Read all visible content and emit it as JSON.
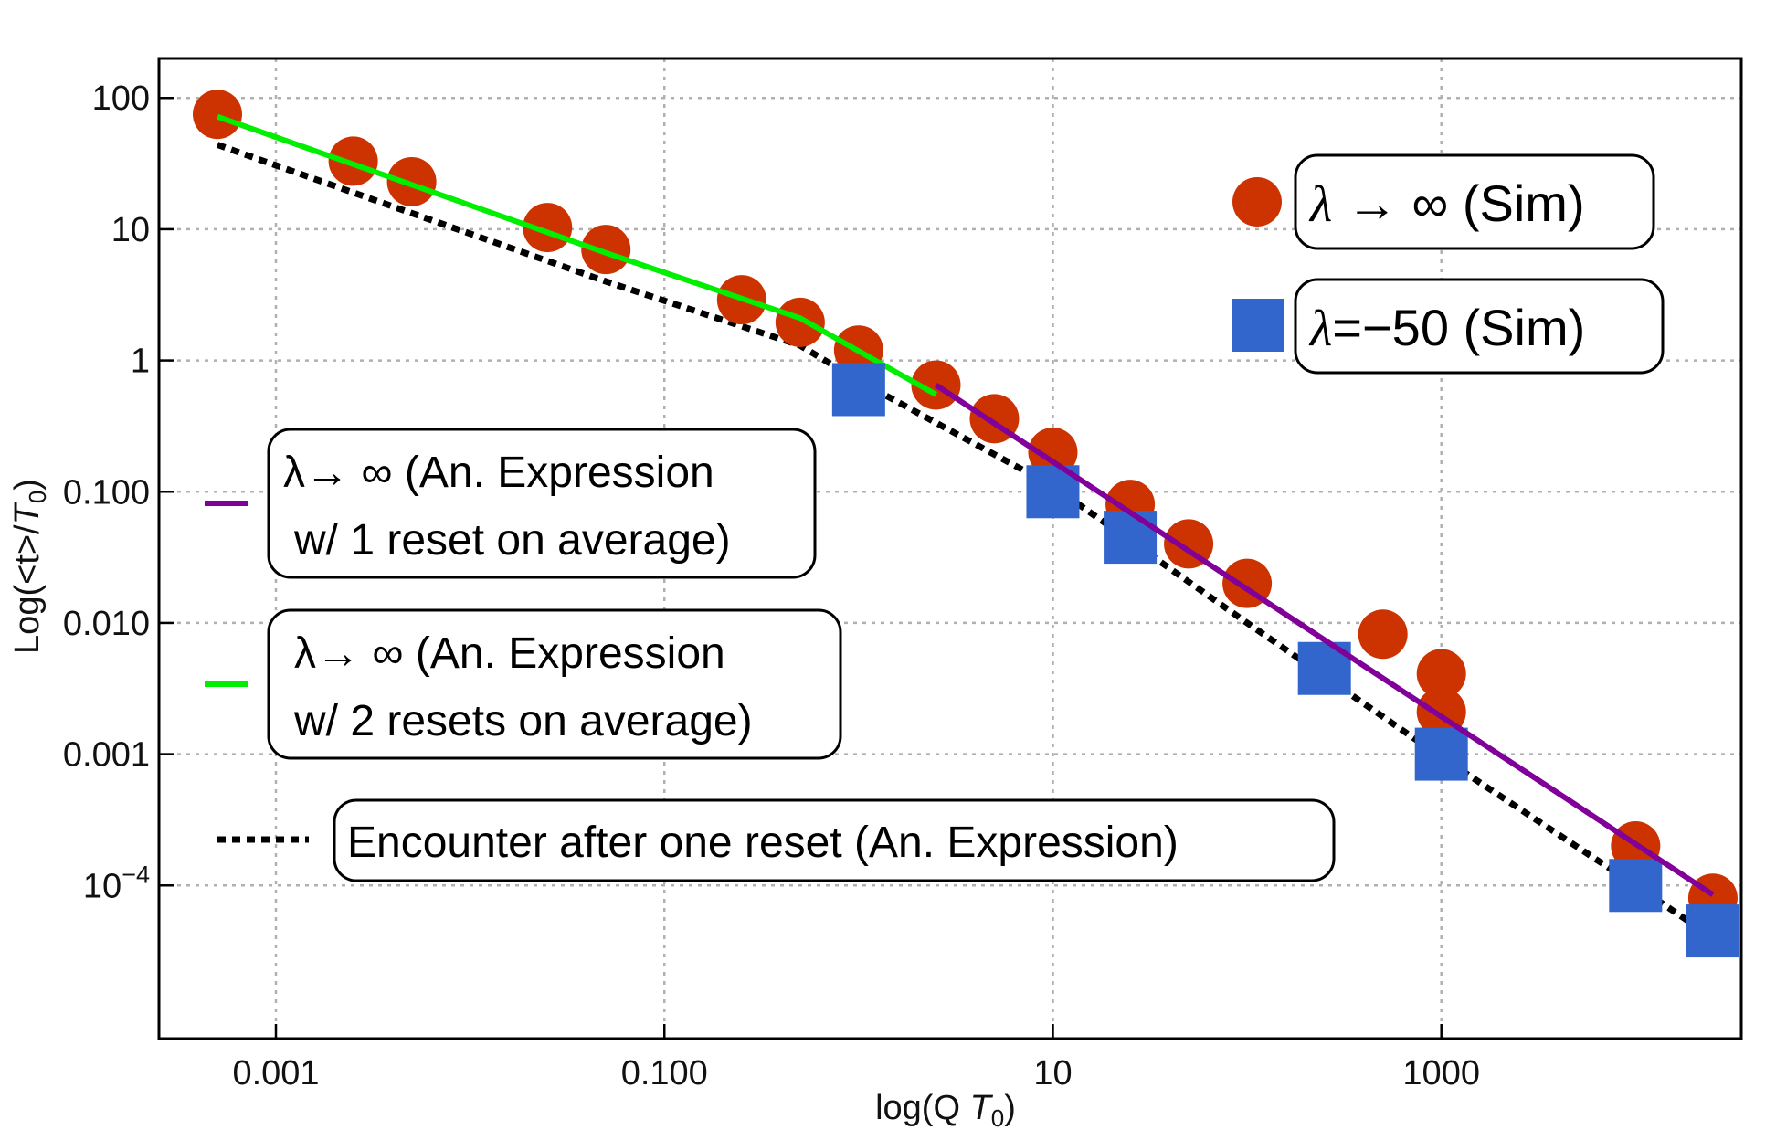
{
  "chart_data": {
    "type": "scatter",
    "xlabel": "log(Q T0)",
    "xlabel_main": "log(Q ",
    "xlabel_var": "T",
    "xlabel_sub": "0",
    "xlabel_close": ")",
    "ylabel": "Log(<t>/T0)",
    "ylabel_main": "Log(<t>/",
    "ylabel_var": "T",
    "ylabel_sub": "0",
    "ylabel_close": ")",
    "xscale": "log",
    "yscale": "log",
    "xlim": [
      0.00025,
      35000
    ],
    "ylim": [
      6.8e-06,
      200
    ],
    "grid": true,
    "x_ticks": [
      {
        "value": 0.001,
        "label": "0.001"
      },
      {
        "value": 0.1,
        "label": "0.100"
      },
      {
        "value": 10,
        "label": "10"
      },
      {
        "value": 1000,
        "label": "1000"
      }
    ],
    "y_ticks": [
      {
        "value": 100,
        "label": "100"
      },
      {
        "value": 10,
        "label": "10"
      },
      {
        "value": 1,
        "label": "1"
      },
      {
        "value": 0.1,
        "label": "0.100"
      },
      {
        "value": 0.01,
        "label": "0.010"
      },
      {
        "value": 0.001,
        "label": "0.001"
      },
      {
        "value": 0.0001,
        "label": "10",
        "sup": "−4"
      }
    ],
    "series": [
      {
        "name": "λ → ∞ (Sim)",
        "kind": "points",
        "marker": "circle",
        "color": "#cc3300",
        "points": [
          [
            0.0005,
            75
          ],
          [
            0.0025,
            33
          ],
          [
            0.005,
            23
          ],
          [
            0.025,
            10.3
          ],
          [
            0.05,
            7
          ],
          [
            0.25,
            2.9
          ],
          [
            0.5,
            1.95
          ],
          [
            1,
            1.2
          ],
          [
            2.5,
            0.65
          ],
          [
            5,
            0.36
          ],
          [
            10,
            0.2
          ],
          [
            25,
            0.08
          ],
          [
            50,
            0.04
          ],
          [
            100,
            0.02
          ],
          [
            500,
            0.0082
          ],
          [
            1000,
            0.0041
          ],
          [
            1000,
            0.0021
          ],
          [
            10000,
            0.0002
          ],
          [
            25000,
            8e-05
          ]
        ]
      },
      {
        "name": "λ=−50 (Sim)",
        "kind": "points",
        "marker": "square",
        "color": "#3366cc",
        "points": [
          [
            1,
            0.6
          ],
          [
            10,
            0.1
          ],
          [
            25,
            0.045
          ],
          [
            250,
            0.0045
          ],
          [
            1000,
            0.001
          ],
          [
            10000,
            0.0001
          ],
          [
            25000,
            4.5e-05
          ]
        ]
      },
      {
        "name": "λ→ ∞ (An. Expression w/ 1 reset on average)",
        "kind": "line",
        "style": "solid",
        "color": "#800099",
        "points": [
          [
            2.5,
            0.65
          ],
          [
            25000,
            8.5e-05
          ]
        ]
      },
      {
        "name": "λ→ ∞ (An. Expression w/ 2 resets on average)",
        "kind": "line",
        "style": "solid",
        "color": "#00ee00",
        "points": [
          [
            0.0005,
            72
          ],
          [
            0.05,
            6.6
          ],
          [
            0.5,
            2.1
          ],
          [
            2.5,
            0.55
          ]
        ]
      },
      {
        "name": "Encounter after one reset (An. Expression)",
        "kind": "line",
        "style": "dotted",
        "color": "#000000",
        "points": [
          [
            0.0005,
            44
          ],
          [
            0.05,
            4
          ],
          [
            0.5,
            1.3
          ],
          [
            1,
            0.7
          ],
          [
            10,
            0.11
          ],
          [
            100,
            0.01
          ],
          [
            1000,
            0.00095
          ],
          [
            10000,
            0.0001
          ],
          [
            25000,
            4e-05
          ]
        ]
      }
    ],
    "legend": {
      "placement": "top-right and left",
      "sim_entries": [
        {
          "prefix": "λ",
          "rest": " → ∞ (Sim)",
          "series_index": 0
        },
        {
          "prefix": "λ",
          "rest": "=−50 (Sim)",
          "series_index": 1
        }
      ],
      "line_entries": [
        {
          "lines": [
            "λ→ ∞ (An. Expression",
            "w/ 1 reset on average)"
          ],
          "series_index": 2
        },
        {
          "lines": [
            "λ→ ∞ (An. Expression",
            "w/ 2 resets on average)"
          ],
          "series_index": 3
        },
        {
          "lines": [
            "Encounter after one reset (An. Expression)"
          ],
          "series_index": 4
        }
      ]
    }
  }
}
